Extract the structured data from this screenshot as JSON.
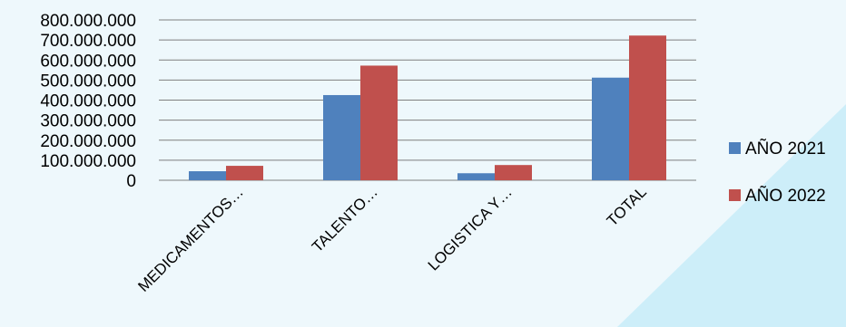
{
  "colors": {
    "background": "#eef8fc",
    "accent_shape": "#cdeef9",
    "gridline": "#7f7f7f"
  },
  "chart_data": {
    "type": "bar",
    "categories": [
      "MEDICAMENTOS…",
      "TALENTO…",
      "LOGISTICA Y…",
      "TOTAL"
    ],
    "series": [
      {
        "name": "AÑO 2021",
        "color": "#4f81bd",
        "values": [
          45000000,
          425000000,
          35000000,
          512000000
        ]
      },
      {
        "name": "AÑO 2022",
        "color": "#c0504d",
        "values": [
          72000000,
          572000000,
          76000000,
          722000000
        ]
      }
    ],
    "y_ticks": [
      "0",
      "100.000.000",
      "200.000.000",
      "300.000.000",
      "400.000.000",
      "500.000.000",
      "600.000.000",
      "700.000.000",
      "800.000.000"
    ],
    "ylim": [
      0,
      800000000
    ],
    "grid": true,
    "legend_position": "right"
  }
}
